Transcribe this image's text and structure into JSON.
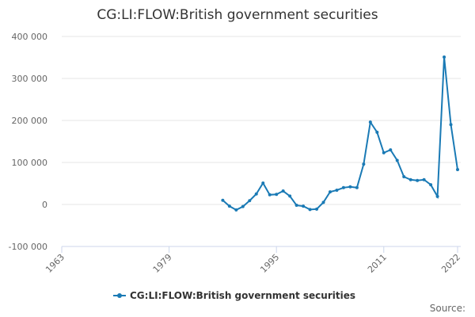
{
  "chart_data": {
    "type": "line",
    "title": "CG:LI:FLOW:British government securities",
    "x": [
      1987,
      1988,
      1989,
      1990,
      1991,
      1992,
      1993,
      1994,
      1995,
      1996,
      1997,
      1998,
      1999,
      2000,
      2001,
      2002,
      2003,
      2004,
      2005,
      2006,
      2007,
      2008,
      2009,
      2010,
      2011,
      2012,
      2013,
      2014,
      2015,
      2016,
      2017,
      2018,
      2019,
      2020,
      2021,
      2022
    ],
    "series": [
      {
        "name": "CG:LI:FLOW:British government securities",
        "color": "#1a7ab5",
        "values": [
          10000,
          -4000,
          -13000,
          -5000,
          9000,
          25000,
          51000,
          23000,
          24000,
          32000,
          20000,
          -2000,
          -4000,
          -12000,
          -11000,
          5000,
          30000,
          34000,
          40000,
          42000,
          40000,
          96000,
          196000,
          172000,
          123000,
          130000,
          105000,
          66000,
          59000,
          57000,
          59000,
          47000,
          19000,
          351000,
          190000,
          83000
        ]
      }
    ],
    "xlim": [
      1963,
      2022
    ],
    "xticks": [
      1963,
      1979,
      1995,
      2011,
      2022
    ],
    "ylim": [
      -100000,
      400000
    ],
    "yticks": [
      {
        "value": -100000,
        "label": "-100 000"
      },
      0,
      {
        "value": 100000,
        "label": "100 000"
      },
      {
        "value": 200000,
        "label": "200 000"
      },
      {
        "value": 300000,
        "label": "300 000"
      },
      {
        "value": 400000,
        "label": "400 000"
      }
    ],
    "grid": true,
    "legend": "bottom",
    "source_label": "Source:"
  }
}
